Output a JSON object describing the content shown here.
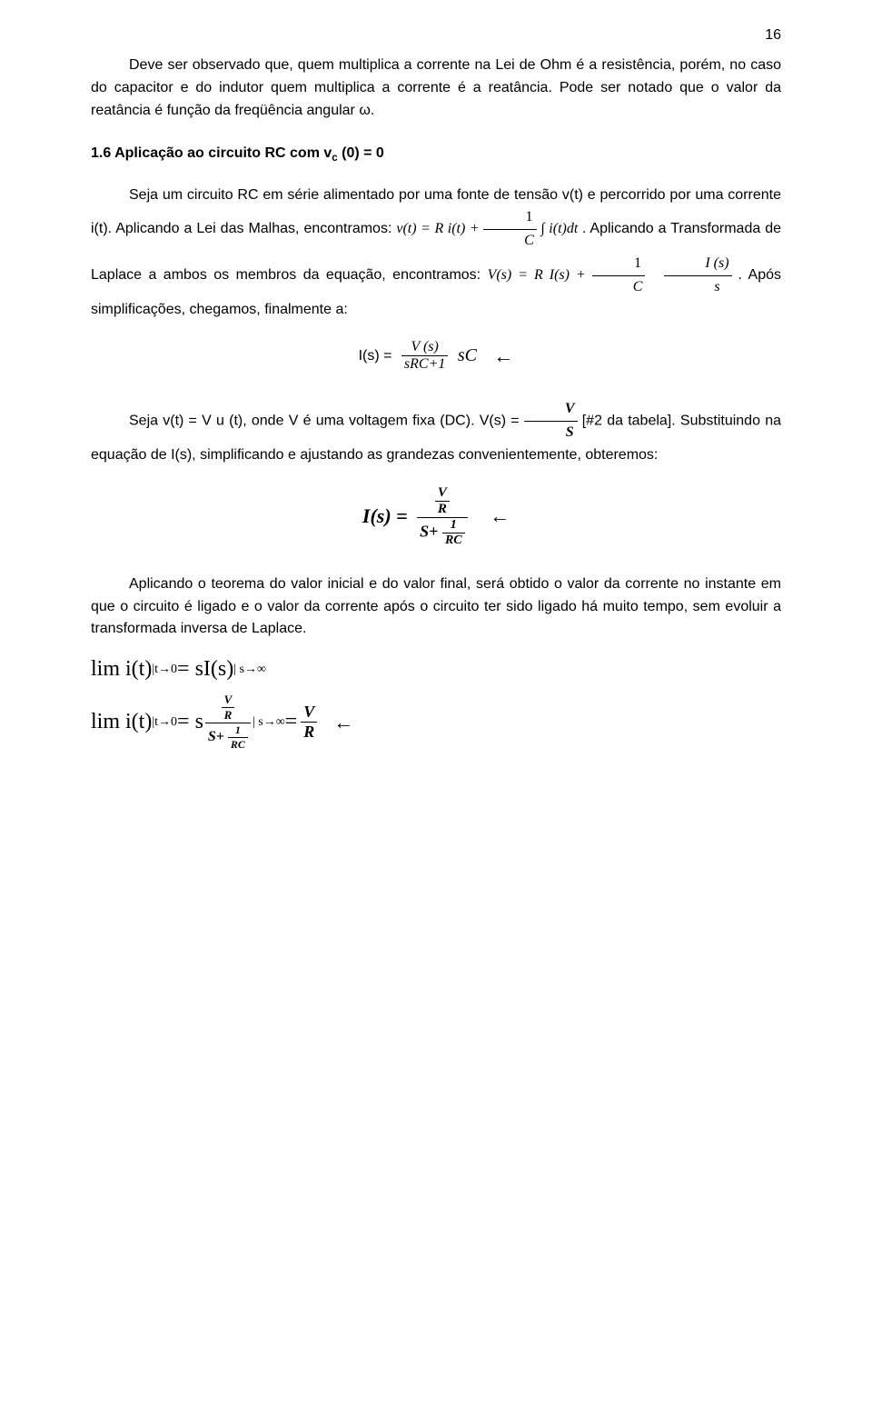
{
  "pageNumber": "16",
  "p1": "Deve ser observado que, quem multiplica a corrente na Lei de Ohm é a resistência, porém, no caso do capacitor e do indutor quem multiplica a corrente é a reatância. Pode ser notado que o valor da reatância é função da freqüência angular ω.",
  "heading": "1.6 Aplicação ao circuito RC com v",
  "headingSub": "c",
  "headingTail": " (0) = 0",
  "p2a": "Seja um circuito RC em série alimentado por uma fonte de tensão v(t) e percorrido por uma corrente i(t). Aplicando a Lei das Malhas, encontramos: ",
  "eqMalhas": "v(t) = R i(t) + ",
  "frac1num": "1",
  "frac1den": "C",
  "integral": " ∫ i(t)dt",
  "p2b": ". Aplicando a Transformada de Laplace a ambos os membros da equação, encontramos: ",
  "eqLap": "V(s) = R I(s) + ",
  "fracIs_num": "I (s)",
  "fracIs_den": "s",
  "p2c": ". Após simplificações, chegamos, finalmente a:",
  "eqIs_left": "I(s) = ",
  "eqIs_num": "V (s)",
  "eqIs_den": "sRC+1",
  "eqIs_tail": " sC",
  "p3a": "Seja v(t) = V u (t), onde V é uma voltagem fixa (DC).  V(s) = ",
  "fracVs_num": "V",
  "fracVs_den": "S",
  "p3b": " [#2 da tabela]. Substituindo na equação de I(s), simplificando e ajustando as grandezas convenientemente, obteremos:",
  "eqBig_left": "I(s) = ",
  "eqBig_num_num": "V",
  "eqBig_num_den": "R",
  "eqBig_den_pre": "S+ ",
  "eqBig_den_num": "1",
  "eqBig_den_den": "RC",
  "p4": "Aplicando o teorema do valor inicial e do valor final, será obtido o valor da corrente no instante em que o circuito é ligado e o valor da corrente após o circuito ter sido ligado há muito tempo, sem evoluir a transformada inversa de Laplace.",
  "lim1": "lim i(t)",
  "lim1sub": " |t→0",
  "lim1mid": " = sI(s) ",
  "lim1end": "| s→∞",
  "lim2": "lim i(t)",
  "lim2sub": " |t→0",
  "lim2mid": " = s ",
  "lim2endsub": " | s→∞",
  "lim2eq": "   =   ",
  "fracVR_num": "V",
  "fracVR_den": "R",
  "arrow": "←"
}
